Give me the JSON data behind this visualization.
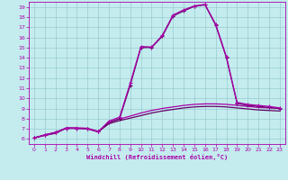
{
  "xlabel": "Windchill (Refroidissement éolien,°C)",
  "xlim": [
    -0.5,
    23.5
  ],
  "ylim": [
    5.5,
    19.5
  ],
  "xticks": [
    0,
    1,
    2,
    3,
    4,
    5,
    6,
    7,
    8,
    9,
    10,
    11,
    12,
    13,
    14,
    15,
    16,
    17,
    18,
    19,
    20,
    21,
    22,
    23
  ],
  "yticks": [
    6,
    7,
    8,
    9,
    10,
    11,
    12,
    13,
    14,
    15,
    16,
    17,
    18,
    19
  ],
  "bg_color": "#c4ecee",
  "grid_color": "#98ccd0",
  "line_color": "#aa00aa",
  "line_color2": "#660066",
  "line1_x": [
    0,
    1,
    2,
    3,
    4,
    5,
    6,
    7,
    8,
    9,
    10,
    11,
    12,
    13,
    14,
    15,
    16,
    17,
    18,
    19,
    20,
    21,
    22,
    23
  ],
  "line1_y": [
    6.1,
    6.35,
    6.55,
    7.05,
    7.05,
    7.0,
    6.7,
    7.5,
    7.8,
    8.05,
    8.3,
    8.55,
    8.75,
    8.9,
    9.05,
    9.15,
    9.2,
    9.2,
    9.15,
    9.05,
    8.95,
    8.85,
    8.8,
    8.75
  ],
  "line2_x": [
    0,
    1,
    2,
    3,
    4,
    5,
    6,
    7,
    8,
    9,
    10,
    11,
    12,
    13,
    14,
    15,
    16,
    17,
    18,
    19,
    20,
    21,
    22,
    23
  ],
  "line2_y": [
    6.1,
    6.35,
    6.6,
    7.1,
    7.1,
    7.05,
    6.75,
    7.65,
    7.95,
    8.25,
    8.55,
    8.8,
    9.0,
    9.15,
    9.3,
    9.4,
    9.45,
    9.45,
    9.4,
    9.3,
    9.2,
    9.1,
    9.05,
    9.0
  ],
  "line3_x": [
    0,
    1,
    2,
    3,
    4,
    5,
    6,
    7,
    8,
    9,
    10,
    11,
    12,
    13,
    14,
    15,
    16,
    17,
    18,
    19,
    20,
    21,
    22,
    23
  ],
  "line3_y": [
    6.1,
    6.4,
    6.65,
    7.05,
    7.05,
    7.0,
    6.7,
    7.6,
    8.0,
    11.3,
    15.0,
    15.0,
    16.1,
    18.1,
    18.6,
    19.05,
    19.2,
    17.2,
    14.0,
    9.5,
    9.3,
    9.2,
    9.1,
    9.0
  ],
  "line4_x": [
    0,
    1,
    2,
    3,
    4,
    5,
    6,
    7,
    8,
    9,
    10,
    11,
    12,
    13,
    14,
    15,
    16,
    17,
    18,
    19,
    20,
    21,
    22,
    23
  ],
  "line4_y": [
    6.1,
    6.4,
    6.65,
    7.05,
    7.05,
    7.0,
    6.7,
    7.75,
    8.15,
    11.5,
    15.1,
    15.05,
    16.2,
    18.2,
    18.7,
    19.1,
    19.25,
    17.3,
    14.1,
    9.6,
    9.4,
    9.3,
    9.2,
    9.05
  ]
}
